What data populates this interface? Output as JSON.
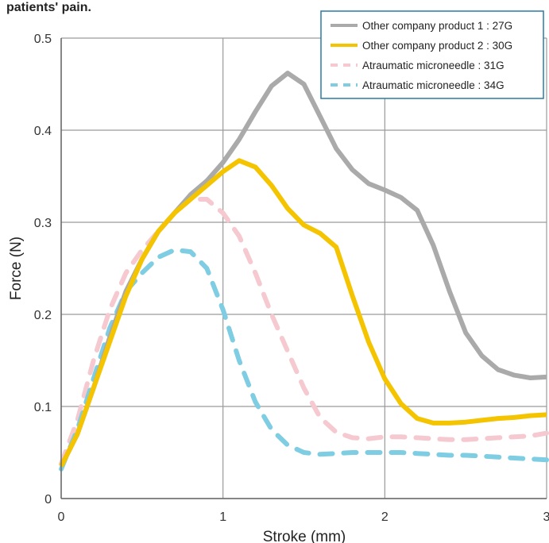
{
  "caption": "patients' pain.",
  "chart_data": {
    "type": "line",
    "title": "",
    "xlabel": "Stroke (mm)",
    "ylabel": "Force (N)",
    "xlim": [
      0,
      3
    ],
    "ylim": [
      0,
      0.5
    ],
    "x_ticks": [
      0,
      1,
      2,
      3
    ],
    "y_ticks": [
      0,
      0.1,
      0.2,
      0.3,
      0.4,
      0.5
    ],
    "x_tick_labels": [
      "0",
      "1",
      "2",
      "3"
    ],
    "y_tick_labels": [
      "0",
      "0.1",
      "0.2",
      "0.3",
      "0.4",
      "0.5"
    ],
    "grid": true,
    "legend_position": "top-right",
    "series": [
      {
        "name": "Other company product 1 : 27G",
        "color": "#aaaaaa",
        "style": "solid",
        "points": [
          [
            0,
            0.035
          ],
          [
            0.1,
            0.07
          ],
          [
            0.2,
            0.12
          ],
          [
            0.3,
            0.175
          ],
          [
            0.4,
            0.225
          ],
          [
            0.5,
            0.26
          ],
          [
            0.6,
            0.29
          ],
          [
            0.7,
            0.31
          ],
          [
            0.8,
            0.33
          ],
          [
            0.9,
            0.345
          ],
          [
            1.0,
            0.365
          ],
          [
            1.1,
            0.39
          ],
          [
            1.2,
            0.42
          ],
          [
            1.3,
            0.448
          ],
          [
            1.4,
            0.462
          ],
          [
            1.5,
            0.45
          ],
          [
            1.6,
            0.415
          ],
          [
            1.7,
            0.38
          ],
          [
            1.8,
            0.357
          ],
          [
            1.9,
            0.342
          ],
          [
            2.0,
            0.335
          ],
          [
            2.1,
            0.327
          ],
          [
            2.2,
            0.313
          ],
          [
            2.3,
            0.275
          ],
          [
            2.4,
            0.225
          ],
          [
            2.5,
            0.18
          ],
          [
            2.6,
            0.155
          ],
          [
            2.7,
            0.14
          ],
          [
            2.8,
            0.134
          ],
          [
            2.9,
            0.131
          ],
          [
            3.0,
            0.132
          ]
        ]
      },
      {
        "name": "Other company product 2 : 30G",
        "color": "#f5c400",
        "style": "solid",
        "points": [
          [
            0,
            0.035
          ],
          [
            0.1,
            0.07
          ],
          [
            0.2,
            0.12
          ],
          [
            0.3,
            0.17
          ],
          [
            0.4,
            0.22
          ],
          [
            0.5,
            0.26
          ],
          [
            0.6,
            0.29
          ],
          [
            0.7,
            0.31
          ],
          [
            0.8,
            0.325
          ],
          [
            0.9,
            0.34
          ],
          [
            1.0,
            0.355
          ],
          [
            1.1,
            0.367
          ],
          [
            1.2,
            0.36
          ],
          [
            1.3,
            0.34
          ],
          [
            1.4,
            0.315
          ],
          [
            1.5,
            0.297
          ],
          [
            1.6,
            0.288
          ],
          [
            1.7,
            0.273
          ],
          [
            1.8,
            0.22
          ],
          [
            1.9,
            0.17
          ],
          [
            2.0,
            0.13
          ],
          [
            2.1,
            0.103
          ],
          [
            2.2,
            0.087
          ],
          [
            2.3,
            0.082
          ],
          [
            2.4,
            0.082
          ],
          [
            2.5,
            0.083
          ],
          [
            2.6,
            0.085
          ],
          [
            2.7,
            0.087
          ],
          [
            2.8,
            0.088
          ],
          [
            2.9,
            0.09
          ],
          [
            3.0,
            0.091
          ]
        ]
      },
      {
        "name": "Atraumatic microneedle : 31G",
        "color": "#f5c9cf",
        "style": "dashed",
        "points": [
          [
            0,
            0.038
          ],
          [
            0.1,
            0.085
          ],
          [
            0.2,
            0.15
          ],
          [
            0.3,
            0.205
          ],
          [
            0.4,
            0.245
          ],
          [
            0.5,
            0.27
          ],
          [
            0.6,
            0.29
          ],
          [
            0.7,
            0.31
          ],
          [
            0.8,
            0.325
          ],
          [
            0.9,
            0.325
          ],
          [
            1.0,
            0.31
          ],
          [
            1.1,
            0.285
          ],
          [
            1.2,
            0.245
          ],
          [
            1.3,
            0.2
          ],
          [
            1.4,
            0.16
          ],
          [
            1.5,
            0.12
          ],
          [
            1.6,
            0.088
          ],
          [
            1.7,
            0.072
          ],
          [
            1.8,
            0.066
          ],
          [
            1.9,
            0.065
          ],
          [
            2.0,
            0.067
          ],
          [
            2.1,
            0.067
          ],
          [
            2.2,
            0.066
          ],
          [
            2.3,
            0.065
          ],
          [
            2.4,
            0.064
          ],
          [
            2.5,
            0.064
          ],
          [
            2.6,
            0.065
          ],
          [
            2.7,
            0.066
          ],
          [
            2.8,
            0.067
          ],
          [
            2.9,
            0.068
          ],
          [
            3.0,
            0.071
          ]
        ]
      },
      {
        "name": "Atraumatic microneedle : 34G",
        "color": "#7ecde3",
        "style": "dashed",
        "points": [
          [
            0,
            0.032
          ],
          [
            0.1,
            0.075
          ],
          [
            0.2,
            0.13
          ],
          [
            0.3,
            0.185
          ],
          [
            0.4,
            0.225
          ],
          [
            0.5,
            0.245
          ],
          [
            0.6,
            0.262
          ],
          [
            0.7,
            0.27
          ],
          [
            0.8,
            0.268
          ],
          [
            0.9,
            0.25
          ],
          [
            1.0,
            0.205
          ],
          [
            1.1,
            0.15
          ],
          [
            1.2,
            0.105
          ],
          [
            1.3,
            0.075
          ],
          [
            1.4,
            0.058
          ],
          [
            1.5,
            0.05
          ],
          [
            1.6,
            0.048
          ],
          [
            1.7,
            0.049
          ],
          [
            1.8,
            0.05
          ],
          [
            1.9,
            0.05
          ],
          [
            2.0,
            0.05
          ],
          [
            2.1,
            0.05
          ],
          [
            2.2,
            0.049
          ],
          [
            2.3,
            0.048
          ],
          [
            2.4,
            0.047
          ],
          [
            2.5,
            0.047
          ],
          [
            2.6,
            0.046
          ],
          [
            2.7,
            0.045
          ],
          [
            2.8,
            0.044
          ],
          [
            2.9,
            0.043
          ],
          [
            3.0,
            0.042
          ]
        ]
      }
    ]
  }
}
